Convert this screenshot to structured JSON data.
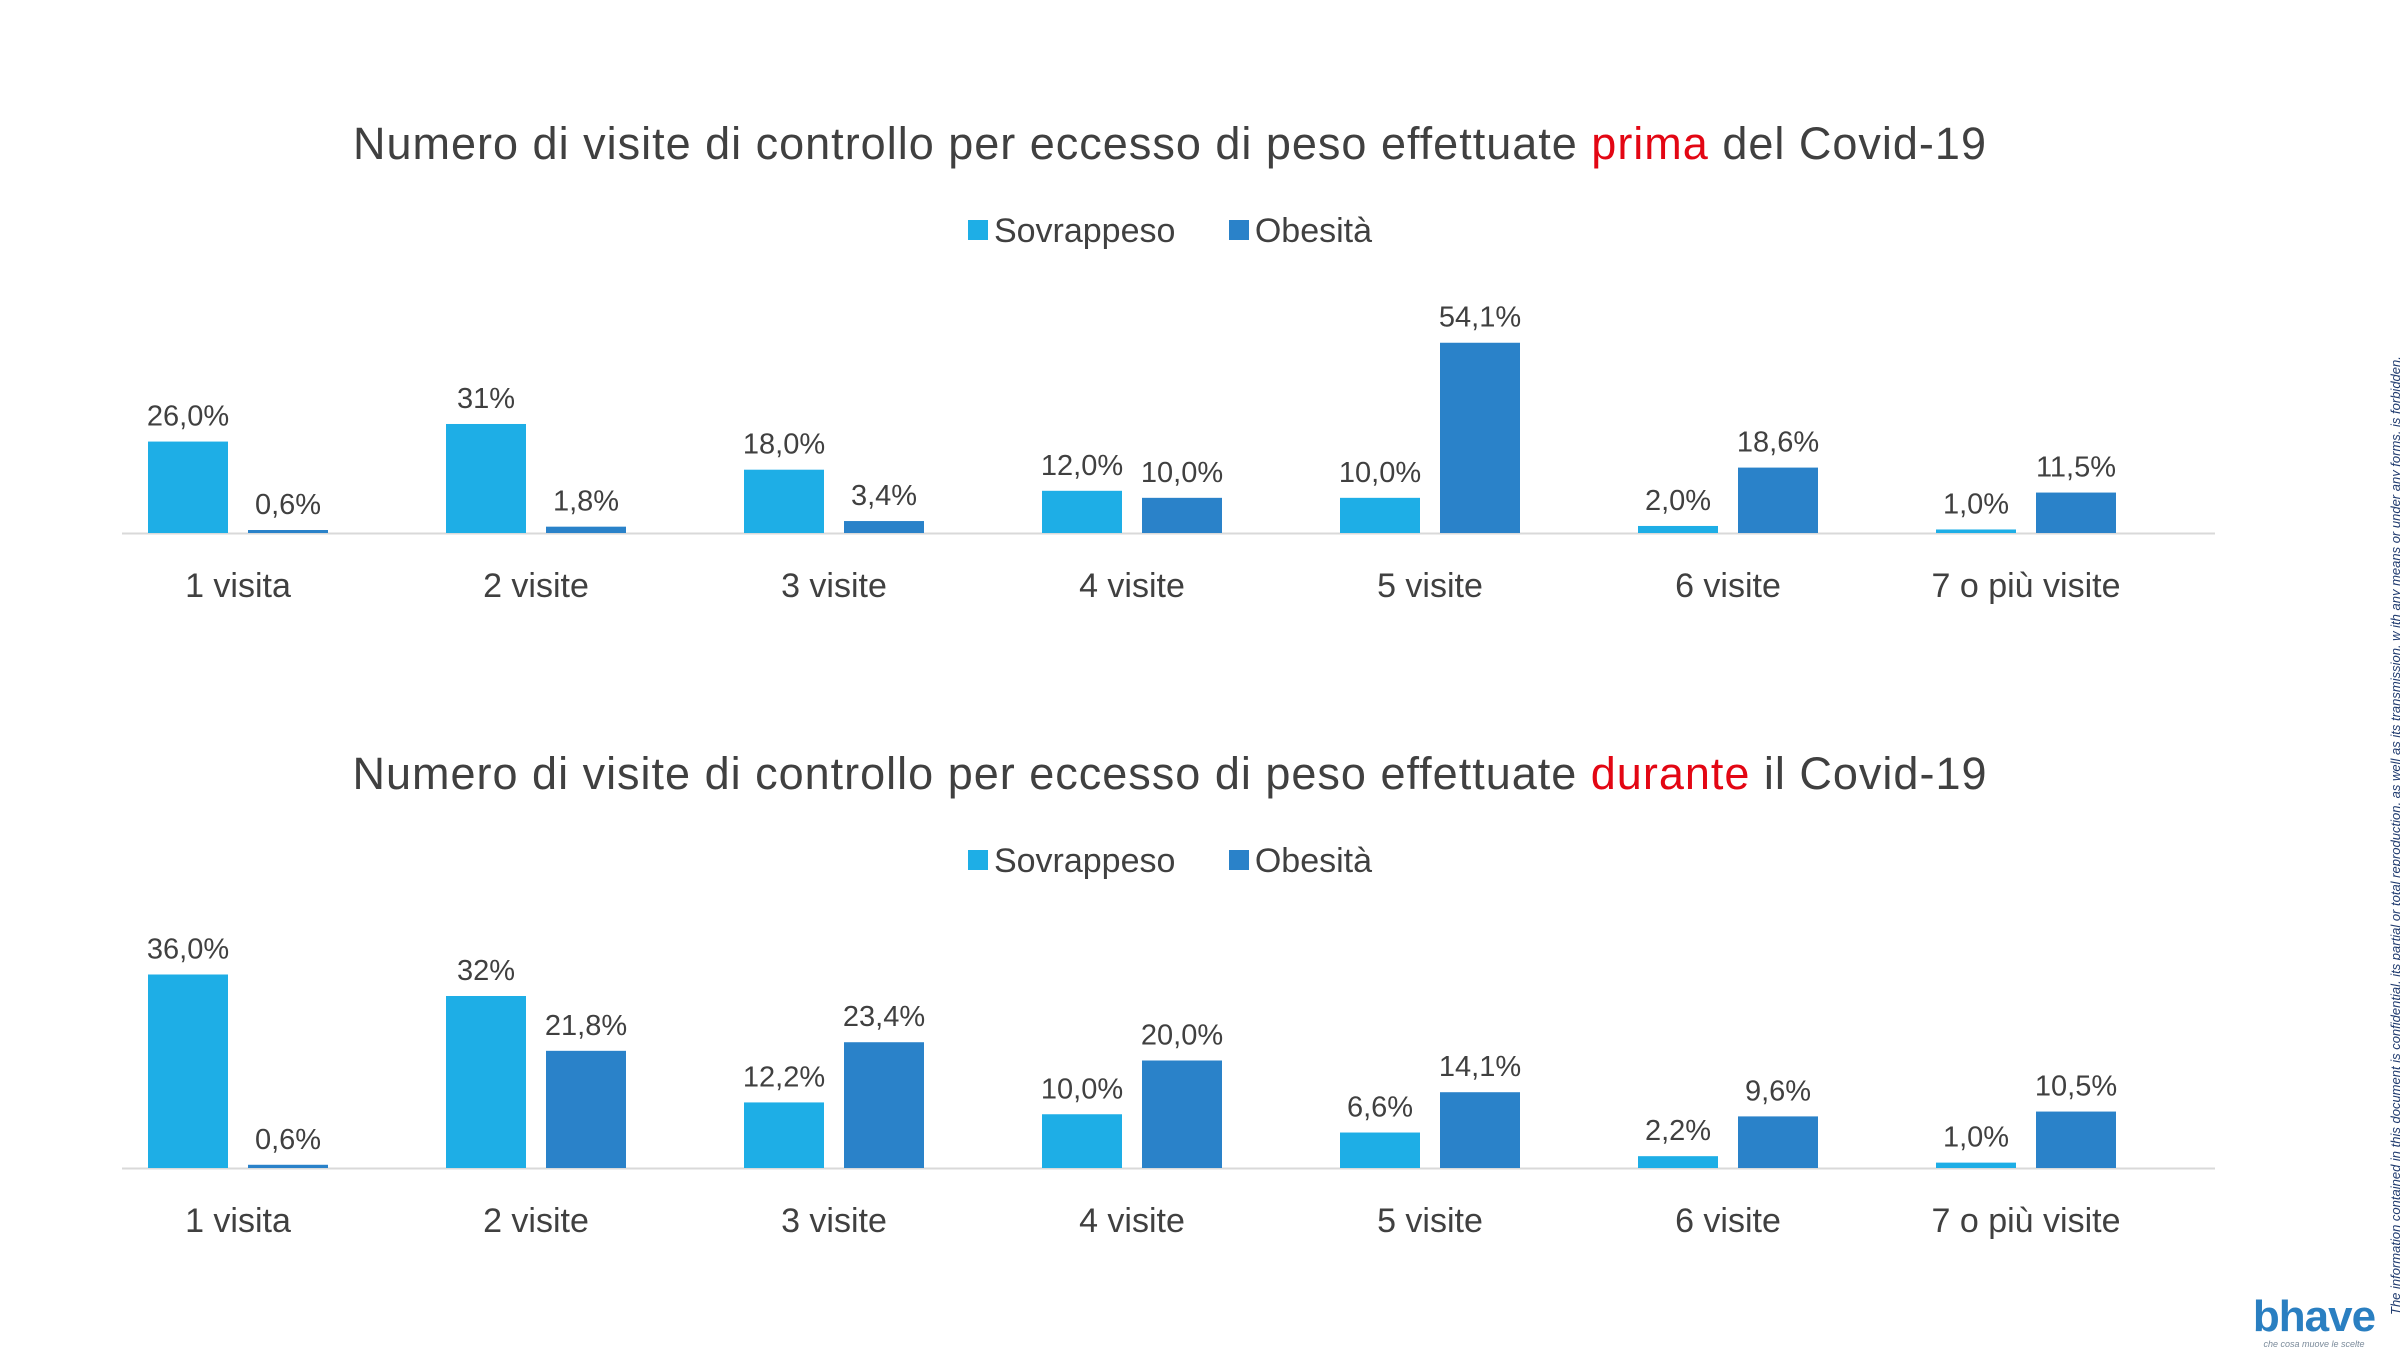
{
  "chart_data": [
    {
      "type": "bar",
      "title_before": "Numero di visite di controllo per eccesso di peso effettuate ",
      "title_highlight": "prima",
      "title_after": " del Covid-19",
      "categories": [
        "1 visita",
        "2 visite",
        "3 visite",
        "4 visite",
        "5 visite",
        "6 visite",
        "7 o più visite"
      ],
      "series": [
        {
          "name": "Sovrappeso",
          "color": "#1eaee6",
          "values": [
            26.0,
            31,
            18.0,
            12.0,
            10.0,
            2.0,
            1.0
          ],
          "labels": [
            "26,0%",
            "31%",
            "18,0%",
            "12,0%",
            "10,0%",
            "2,0%",
            "1,0%"
          ]
        },
        {
          "name": "Obesità",
          "color": "#2a82c9",
          "values": [
            0.6,
            1.8,
            3.4,
            10.0,
            54.1,
            18.6,
            11.5
          ],
          "labels": [
            "0,6%",
            "1,8%",
            "3,4%",
            "10,0%",
            "54,1%",
            "18,6%",
            "11,5%"
          ]
        }
      ],
      "ylim": [
        0,
        60
      ],
      "grid": false,
      "legend": "top-center"
    },
    {
      "type": "bar",
      "title_before": "Numero di visite di controllo per eccesso di peso effettuate ",
      "title_highlight": "durante",
      "title_after": " il Covid-19",
      "categories": [
        "1 visita",
        "2 visite",
        "3 visite",
        "4 visite",
        "5 visite",
        "6 visite",
        "7 o più visite"
      ],
      "series": [
        {
          "name": "Sovrappeso",
          "color": "#1eaee6",
          "values": [
            36.0,
            32,
            12.2,
            10.0,
            6.6,
            2.2,
            1.0
          ],
          "labels": [
            "36,0%",
            "32%",
            "12,2%",
            "10,0%",
            "6,6%",
            "2,2%",
            "1,0%"
          ]
        },
        {
          "name": "Obesità",
          "color": "#2a82c9",
          "values": [
            0.6,
            21.8,
            23.4,
            20.0,
            14.1,
            9.6,
            10.5
          ],
          "labels": [
            "0,6%",
            "21,8%",
            "23,4%",
            "20,0%",
            "14,1%",
            "9,6%",
            "10,5%"
          ]
        }
      ],
      "ylim": [
        0,
        40
      ],
      "grid": false,
      "legend": "top-center"
    }
  ],
  "side_note": "The information contained in this document is confidential, its partial or total reproduction, as well as its transmission, w     ith  any means or under any forms, is forbidden.",
  "logo": {
    "name": "bhave",
    "tagline": "che cosa muove le scelte"
  }
}
